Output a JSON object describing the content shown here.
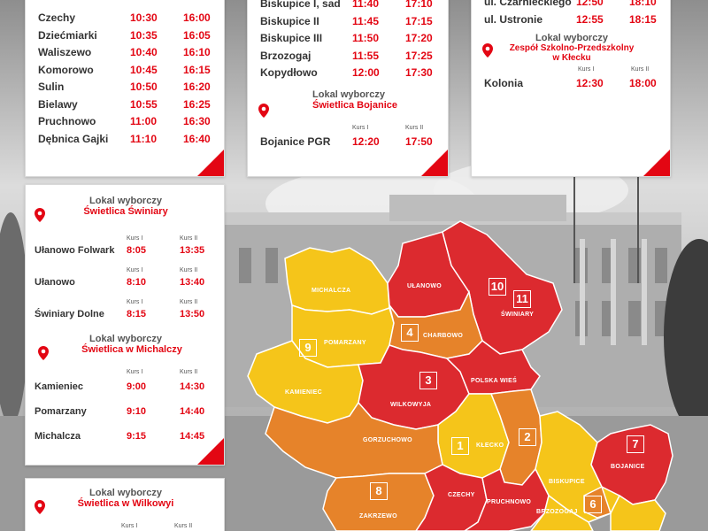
{
  "colors": {
    "accent": "#e30613",
    "red": "#dc2a2f",
    "orange": "#e6832a",
    "yellow": "#f5c51a"
  },
  "card_left_top": {
    "rows": [
      {
        "name": "Czechy",
        "t1": "10:30",
        "t2": "16:00"
      },
      {
        "name": "Dziećmiarki",
        "t1": "10:35",
        "t2": "16:05"
      },
      {
        "name": "Waliszewo",
        "t1": "10:40",
        "t2": "16:10"
      },
      {
        "name": "Komorowo",
        "t1": "10:45",
        "t2": "16:15"
      },
      {
        "name": "Sulin",
        "t1": "10:50",
        "t2": "16:20"
      },
      {
        "name": "Bielawy",
        "t1": "10:55",
        "t2": "16:25"
      },
      {
        "name": "Pruchnowo",
        "t1": "11:00",
        "t2": "16:30"
      },
      {
        "name": "Dębnica Gajki",
        "t1": "11:10",
        "t2": "16:40"
      }
    ]
  },
  "card_mid_top": {
    "rows": [
      {
        "name": "Biskupice I, sad",
        "t1": "11:40",
        "t2": "17:10"
      },
      {
        "name": "Biskupice II",
        "t1": "11:45",
        "t2": "17:15"
      },
      {
        "name": "Biskupice III",
        "t1": "11:50",
        "t2": "17:20"
      },
      {
        "name": "Brzozogaj",
        "t1": "11:55",
        "t2": "17:25"
      },
      {
        "name": "Kopydłowo",
        "t1": "12:00",
        "t2": "17:30"
      }
    ],
    "lokal_label": "Lokal wyborczy",
    "lokal_name": "Świetlica Bojanice",
    "kurs1": "Kurs I",
    "kurs2": "Kurs II",
    "extra": {
      "name": "Bojanice PGR",
      "t1": "12:20",
      "t2": "17:50"
    }
  },
  "card_right_top": {
    "rows": [
      {
        "name": "ul. Czarnieckiego",
        "t1": "12:50",
        "t2": "18:10"
      },
      {
        "name": "ul. Ustronie",
        "t1": "12:55",
        "t2": "18:15"
      }
    ],
    "lokal_label": "Lokal wyborczy",
    "lokal_name": "Zespół Szkolno-Przedszkolny",
    "lokal_name2": "w Kłecku",
    "kurs1": "Kurs I",
    "kurs2": "Kurs II",
    "extra": {
      "name": "Kolonia",
      "t1": "12:30",
      "t2": "18:00"
    }
  },
  "card_swiniary": {
    "lokal_label": "Lokal wyborczy",
    "lokal_name": "Świetlica Świniary",
    "kurs1": "Kurs I",
    "kurs2": "Kurs II",
    "rows": [
      {
        "name": "Ułanowo Folwark",
        "t1": "8:05",
        "t2": "13:35"
      },
      {
        "name": "Ułanowo",
        "t1": "8:10",
        "t2": "13:40"
      },
      {
        "name": "Świniary Dolne",
        "t1": "8:15",
        "t2": "13:50"
      }
    ],
    "lokal2_label": "Lokal wyborczy",
    "lokal2_name": "Świetlica w Michalczy",
    "rows2": [
      {
        "name": "Kamieniec",
        "t1": "9:00",
        "t2": "14:30"
      },
      {
        "name": "Pomarzany",
        "t1": "9:10",
        "t2": "14:40"
      },
      {
        "name": "Michalcza",
        "t1": "9:15",
        "t2": "14:45"
      }
    ]
  },
  "card_wilkowyja": {
    "lokal_label": "Lokal wyborczy",
    "lokal_name": "Świetlica w Wilkowyi",
    "kurs1": "Kurs I",
    "kurs2": "Kurs II"
  },
  "map": {
    "labels": {
      "michalcza": "MICHALCZA",
      "ulanowo": "UŁANOWO",
      "swiniary": "ŚWINIARY",
      "pomarzany": "POMARZANY",
      "charbowo": "CHARBOWO",
      "kamieniec": "KAMIENIEC",
      "wilkowyja": "WILKOWYJA",
      "polska_wies": "POLSKA WIEŚ",
      "klecko": "KŁECKO",
      "gorzuchowo": "GORZUCHOWO",
      "biskupice": "BISKUPICE",
      "bojanice": "BOJANICE",
      "czechy": "CZECHY",
      "pruchnowo": "PRUCHNOWO",
      "zakrzewo": "ZAKRZEWO",
      "brzozogaj": "BRZOZOGAJ"
    },
    "numbers": {
      "n10": "10",
      "n11": "11",
      "n4": "4",
      "n9": "9",
      "n3": "3",
      "n2": "2",
      "n1": "1",
      "n7": "7",
      "n8": "8",
      "n6": "6"
    }
  }
}
